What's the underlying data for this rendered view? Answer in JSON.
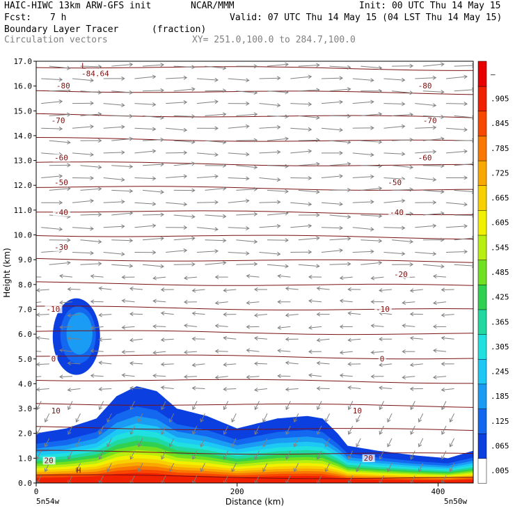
{
  "header": {
    "model": "HAIC-HIWC 13km ARW-GFS init",
    "org": "NCAR/MMM",
    "init": "Init: 00 UTC Thu 14 May 15",
    "fcst_label": "Fcst:",
    "fcst_value": "7 h",
    "valid": "Valid: 07 UTC Thu 14 May 15 (04 LST Thu 14 May 15)",
    "field": "Boundary Layer Tracer",
    "units": "(fraction)",
    "overlay": "Circulation vectors",
    "xsec": "XY= 251.0,100.0 to 284.7,100.0"
  },
  "chart_data": {
    "type": "heatmap",
    "xlabel": "Distance (km)",
    "ylabel": "Height (km)",
    "xlim": [
      0,
      435
    ],
    "ylim": [
      0,
      17
    ],
    "x_ticks": [
      "0",
      "200",
      "400"
    ],
    "x_tick_values": [
      0,
      200,
      400
    ],
    "y_ticks": [
      "0.0",
      "1.0",
      "2.0",
      "3.0",
      "4.0",
      "5.0",
      "6.0",
      "7.0",
      "8.0",
      "9.0",
      "10.0",
      "11.0",
      "12.0",
      "13.0",
      "14.0",
      "15.0",
      "16.0",
      "17.0"
    ],
    "x_end_labels": {
      "left": "5n54w",
      "right": "5n50w"
    },
    "colorbar": {
      "labels": [
        ".005",
        ".065",
        ".125",
        ".185",
        ".245",
        ".305",
        ".365",
        ".425",
        ".485",
        ".545",
        ".605",
        ".665",
        ".725",
        ".785",
        ".845",
        ".905",
        "–"
      ],
      "colors": [
        "#ffffff",
        "#0b3fe0",
        "#1468f0",
        "#1a9cf5",
        "#1ec8f5",
        "#20e0e0",
        "#20d8a0",
        "#30d050",
        "#70e020",
        "#b8ee10",
        "#f0f000",
        "#f8d000",
        "#f8a800",
        "#f87800",
        "#f84800",
        "#f02000",
        "#e80000"
      ]
    },
    "contour_labels": [
      {
        "text": "-80",
        "x": 20,
        "y": 15.9
      },
      {
        "text": "-80",
        "x": 380,
        "y": 15.9
      },
      {
        "text": "-70",
        "x": 15,
        "y": 14.5
      },
      {
        "text": "-70",
        "x": 385,
        "y": 14.5
      },
      {
        "text": "-60",
        "x": 18,
        "y": 13.0
      },
      {
        "text": "-60",
        "x": 380,
        "y": 13.0
      },
      {
        "text": "-50",
        "x": 18,
        "y": 12.0
      },
      {
        "text": "-50",
        "x": 350,
        "y": 12.0
      },
      {
        "text": "-40",
        "x": 18,
        "y": 10.8
      },
      {
        "text": "-40",
        "x": 352,
        "y": 10.8
      },
      {
        "text": "-30",
        "x": 18,
        "y": 9.4
      },
      {
        "text": "-20",
        "x": 356,
        "y": 8.3
      },
      {
        "text": "-10",
        "x": 10,
        "y": 6.9
      },
      {
        "text": "-10",
        "x": 338,
        "y": 6.9
      },
      {
        "text": "0",
        "x": 15,
        "y": 4.9
      },
      {
        "text": "0",
        "x": 342,
        "y": 4.9
      },
      {
        "text": "10",
        "x": 15,
        "y": 2.8
      },
      {
        "text": "10",
        "x": 315,
        "y": 2.8
      },
      {
        "text": "20",
        "x": 8,
        "y": 0.8
      },
      {
        "text": "20",
        "x": 326,
        "y": 0.9
      },
      {
        "text": "-84.64",
        "x": 45,
        "y": 16.4
      }
    ],
    "extrema": [
      {
        "text": "L",
        "x": 45,
        "y": 16.7
      },
      {
        "text": "H",
        "x": 40,
        "y": 0.4
      }
    ],
    "tracer_profile": {
      "top_km": [
        [
          0,
          2.0
        ],
        [
          30,
          2.2
        ],
        [
          60,
          2.6
        ],
        [
          80,
          3.5
        ],
        [
          100,
          3.9
        ],
        [
          120,
          3.7
        ],
        [
          140,
          3.0
        ],
        [
          170,
          2.7
        ],
        [
          200,
          2.2
        ],
        [
          240,
          2.6
        ],
        [
          270,
          2.7
        ],
        [
          285,
          2.6
        ],
        [
          300,
          2.0
        ],
        [
          310,
          1.5
        ],
        [
          340,
          1.3
        ],
        [
          380,
          1.1
        ],
        [
          410,
          1.0
        ],
        [
          435,
          1.3
        ]
      ],
      "blob_center": [
        40,
        5.9
      ]
    }
  }
}
